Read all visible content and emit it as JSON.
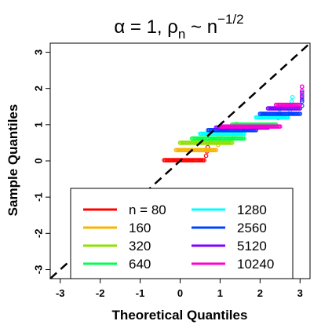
{
  "chart_data": {
    "type": "scatter",
    "title": {
      "parts": [
        {
          "text": "α = 1, ρ"
        },
        {
          "text": "n",
          "sub": true
        },
        {
          "text": " ~ n"
        },
        {
          "text": "−1/2",
          "sup": true
        }
      ]
    },
    "xlabel": "Theoretical Quantiles",
    "ylabel": "Sample Quantiles",
    "xlim": [
      -3.25,
      3.25
    ],
    "ylim": [
      -3.25,
      3.25
    ],
    "xticks": [
      -3,
      -2,
      -1,
      0,
      1,
      2,
      3
    ],
    "yticks": [
      -3,
      -2,
      -1,
      0,
      1,
      2,
      3
    ],
    "reference_line": {
      "slope": 1,
      "intercept": 0,
      "style": "dashed"
    },
    "legend": {
      "position": "bottom-center"
    },
    "series": [
      {
        "name": "n = 80",
        "color": "#ff0000",
        "levels": [
          {
            "y": 0.02,
            "x": [
              -0.4,
              0.6
            ]
          }
        ]
      },
      {
        "name": "160",
        "color": "#f7b400",
        "levels": [
          {
            "y": 0.3,
            "x": [
              -0.1,
              0.9
            ]
          }
        ]
      },
      {
        "name": "320",
        "color": "#8ee100",
        "levels": [
          {
            "y": 0.5,
            "x": [
              0.0,
              1.3
            ]
          }
        ]
      },
      {
        "name": "640",
        "color": "#00ff50",
        "levels": [
          {
            "y": 0.62,
            "x": [
              0.3,
              1.6
            ]
          },
          {
            "y": 1.0,
            "x": [
              1.3,
              2.4
            ]
          }
        ]
      },
      {
        "name": "1280",
        "color": "#00ffff",
        "levels": [
          {
            "y": 0.75,
            "x": [
              0.5,
              1.6
            ]
          },
          {
            "y": 1.2,
            "x": [
              1.9,
              2.7
            ]
          }
        ]
      },
      {
        "name": "2560",
        "color": "#0040ff",
        "levels": [
          {
            "y": 0.85,
            "x": [
              0.7,
              1.9
            ]
          },
          {
            "y": 1.3,
            "x": [
              2.0,
              3.0
            ]
          }
        ]
      },
      {
        "name": "5120",
        "color": "#8000ff",
        "levels": [
          {
            "y": 0.92,
            "x": [
              0.9,
              2.2
            ]
          },
          {
            "y": 1.45,
            "x": [
              2.2,
              3.0
            ]
          }
        ]
      },
      {
        "name": "10240",
        "color": "#ff00d0",
        "levels": [
          {
            "y": 0.95,
            "x": [
              1.0,
              2.5
            ]
          },
          {
            "y": 1.55,
            "x": [
              2.4,
              3.0
            ]
          }
        ]
      }
    ]
  }
}
